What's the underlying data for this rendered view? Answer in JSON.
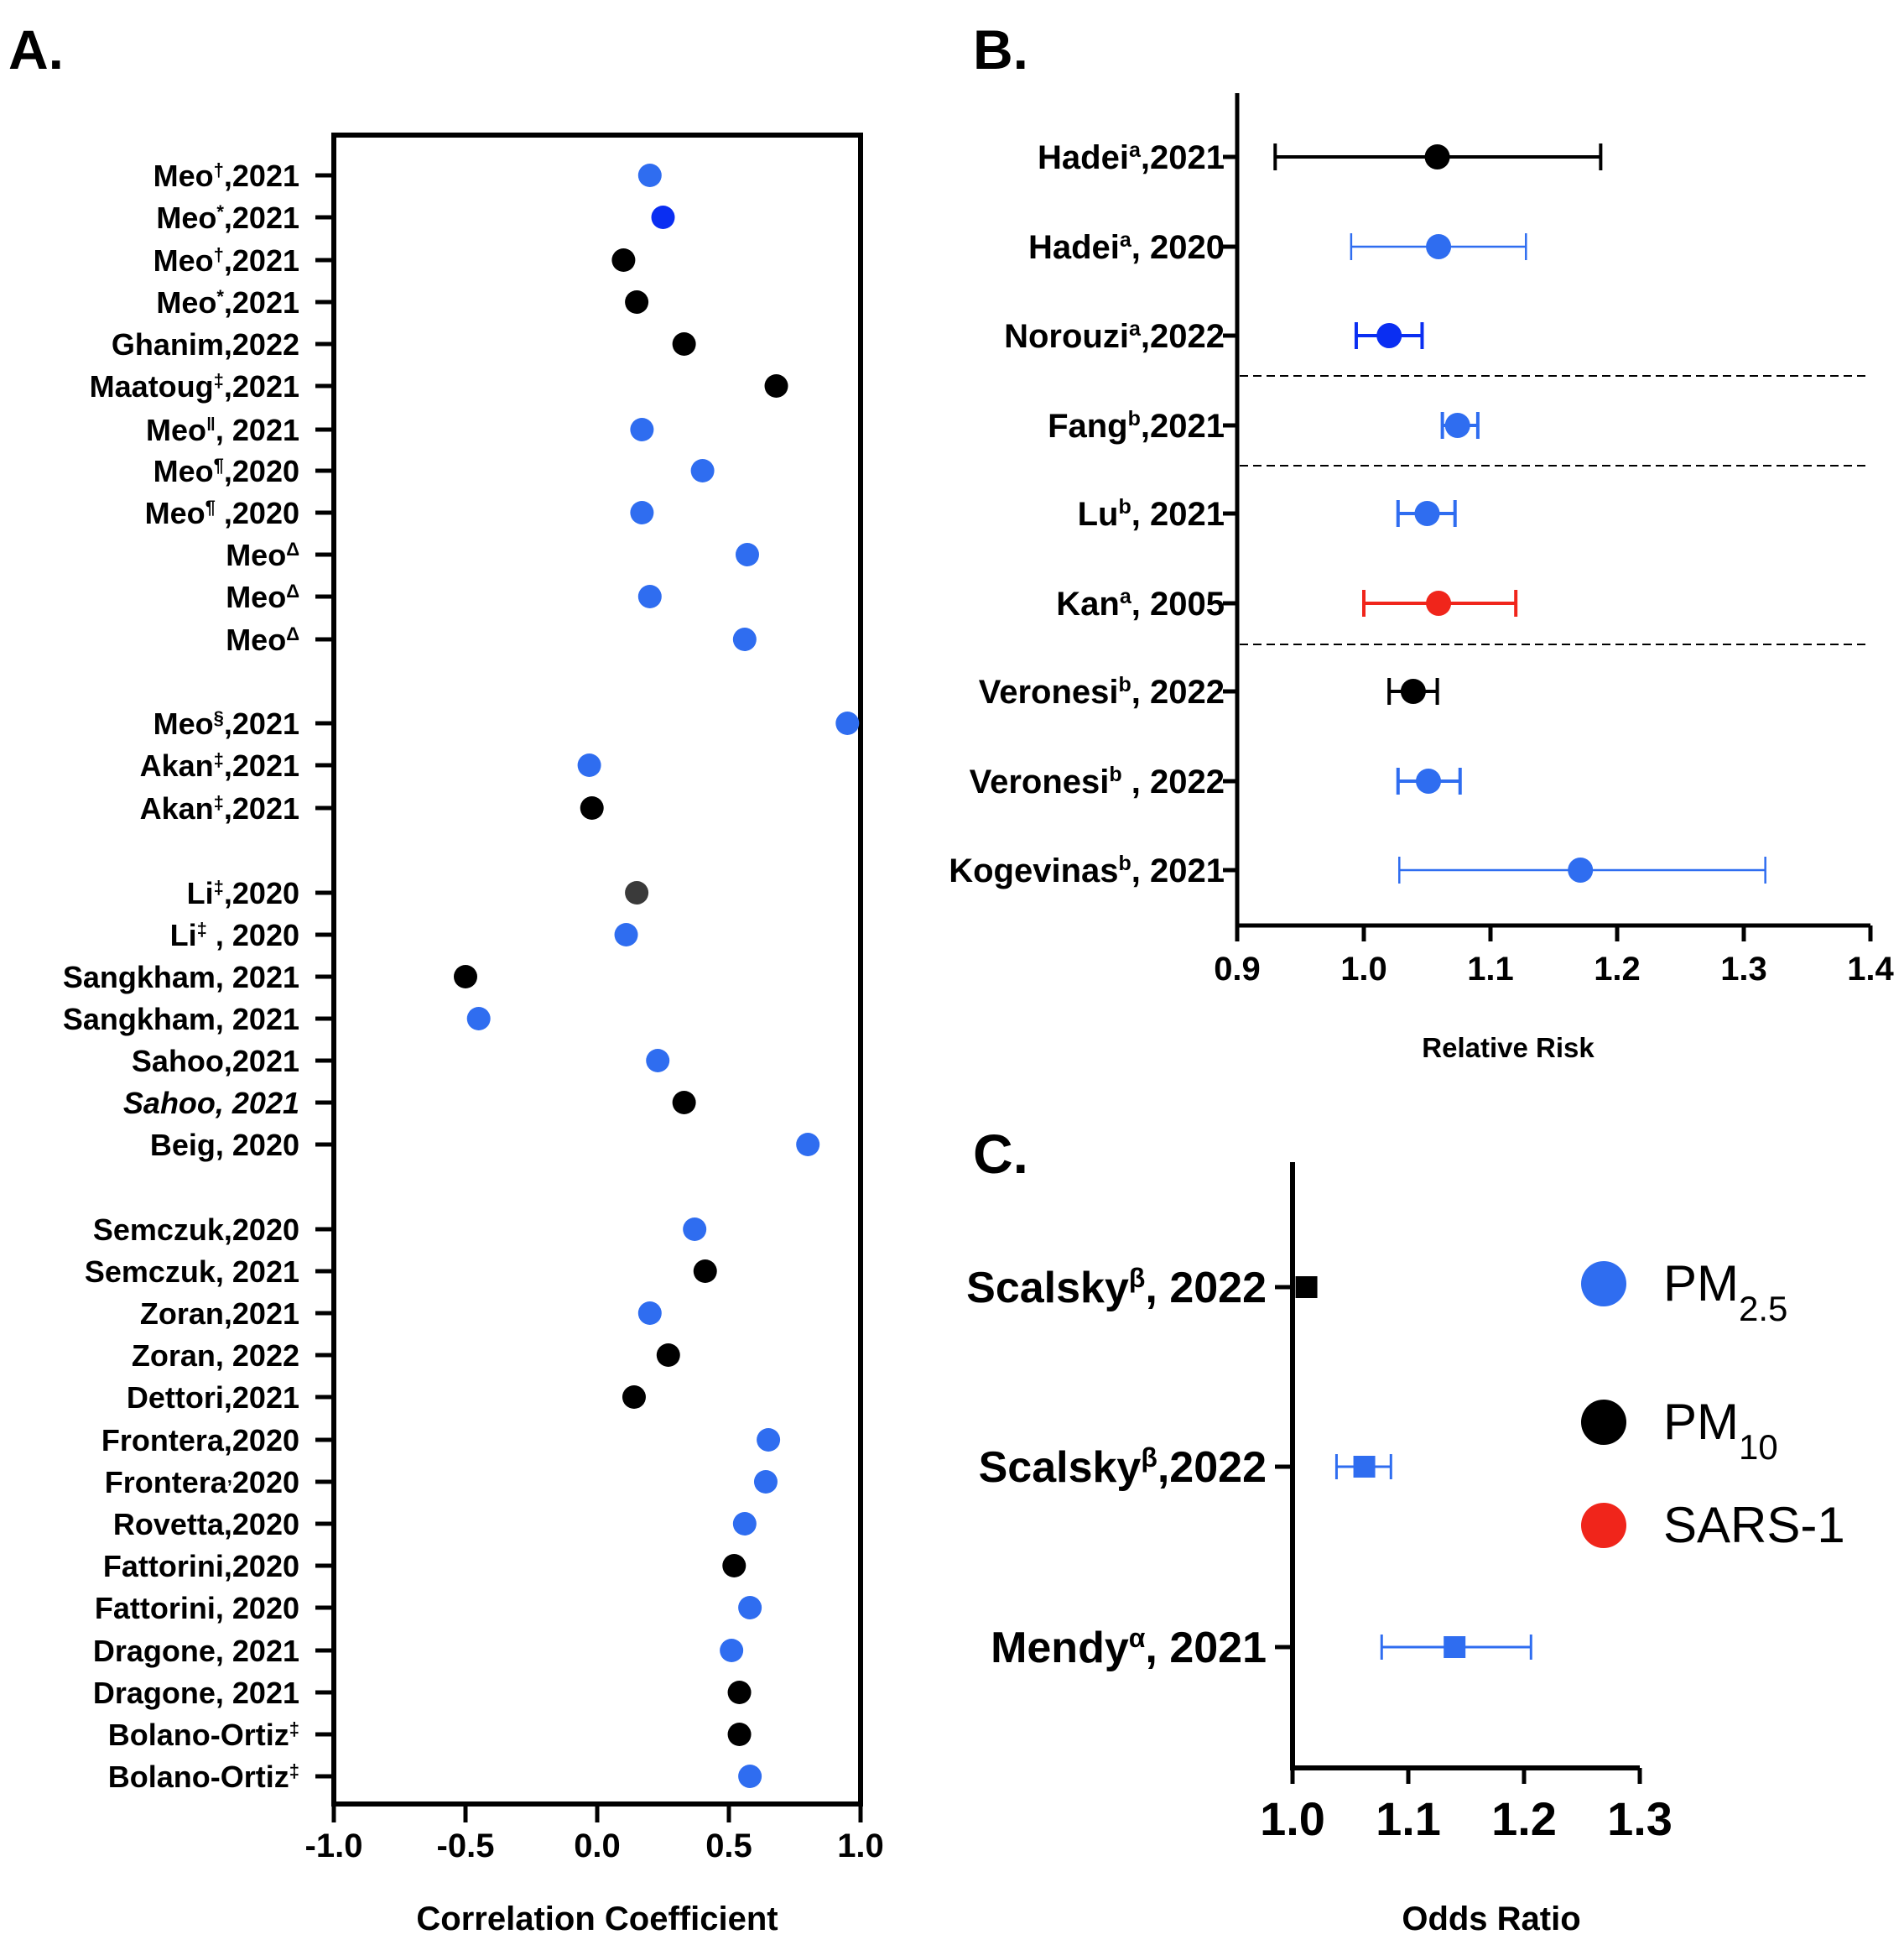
{
  "colors": {
    "pm25": "#2f6df0",
    "pm25_dark": "#0a2ef2",
    "pm10": "#000000",
    "pm10_gray": "#3a3a3a",
    "sars1": "#f0251b"
  },
  "chart_data": [
    {
      "panel": "A.",
      "type": "scatter",
      "xlabel": "Correlation Coefficient",
      "xlim": [
        -1.0,
        1.0
      ],
      "xticks": [
        "-1.0",
        "-0.5",
        "0.0",
        "0.5",
        "1.0"
      ],
      "points": [
        {
          "label": "Meo",
          "sup": "†",
          "tail": ",2021",
          "value": 0.2,
          "color": "pm25"
        },
        {
          "label": "Meo",
          "sup": "*",
          "tail": ",2021",
          "value": 0.25,
          "color": "pm25_dark"
        },
        {
          "label": "Meo",
          "sup": "†",
          "tail": ",2021",
          "value": 0.1,
          "color": "pm10"
        },
        {
          "label": "Meo",
          "sup": "*",
          "tail": ",2021",
          "value": 0.15,
          "color": "pm10"
        },
        {
          "label": "Ghanim,2022",
          "sup": "",
          "tail": "",
          "value": 0.33,
          "color": "pm10"
        },
        {
          "label": "Maatoug",
          "sup": "‡",
          "tail": ",2021",
          "value": 0.68,
          "color": "pm10"
        },
        {
          "label": "Meo",
          "sup": "ǁ",
          "tail": ", 2021",
          "value": 0.17,
          "color": "pm25"
        },
        {
          "label": "Meo",
          "sup": "¶",
          "tail": ",2020",
          "value": 0.4,
          "color": "pm25"
        },
        {
          "label": "Meo",
          "sup": "¶",
          "tail": " ,2020",
          "value": 0.17,
          "color": "pm25"
        },
        {
          "label": "Meo",
          "sup": "Δ",
          "tail": "",
          "value": 0.57,
          "color": "pm25"
        },
        {
          "label": "Meo",
          "sup": "Δ",
          "tail": "",
          "value": 0.2,
          "color": "pm25"
        },
        {
          "label": "Meo",
          "sup": "Δ",
          "tail": "",
          "value": 0.56,
          "color": "pm25"
        },
        {
          "label": "Meo",
          "sup": "§",
          "tail": ",2021",
          "value": 0.95,
          "color": "pm25"
        },
        {
          "label": "Akan",
          "sup": "‡",
          "tail": ",2021",
          "value": -0.03,
          "color": "pm25"
        },
        {
          "label": "Akan",
          "sup": "‡",
          "tail": ",2021",
          "value": -0.02,
          "color": "pm10"
        },
        {
          "label": "Li",
          "sup": "‡",
          "tail": ",2020",
          "value": 0.15,
          "color": "pm10_gray"
        },
        {
          "label": "Li",
          "sup": "‡",
          "tail": " , 2020",
          "value": 0.11,
          "color": "pm25"
        },
        {
          "label": "Sangkham, 2021",
          "sup": "",
          "tail": "",
          "value": -0.5,
          "color": "pm10"
        },
        {
          "label": "Sangkham, 2021",
          "sup": "",
          "tail": "",
          "value": -0.45,
          "color": "pm25"
        },
        {
          "label": "Sahoo,2021",
          "sup": "",
          "tail": "",
          "value": 0.23,
          "color": "pm25"
        },
        {
          "label": "Sahoo, 2021",
          "sup": "",
          "tail": "",
          "value": 0.33,
          "color": "pm10",
          "italic": true
        },
        {
          "label": "Beig, 2020",
          "sup": "",
          "tail": "",
          "value": 0.8,
          "color": "pm25"
        },
        {
          "label": "Semczuk,2020",
          "sup": "",
          "tail": "",
          "value": 0.37,
          "color": "pm25"
        },
        {
          "label": "Semczuk, 2021",
          "sup": "",
          "tail": "",
          "value": 0.41,
          "color": "pm10"
        },
        {
          "label": "Zoran,2021",
          "sup": "",
          "tail": "",
          "value": 0.2,
          "color": "pm25"
        },
        {
          "label": "Zoran, 2022",
          "sup": "",
          "tail": "",
          "value": 0.27,
          "color": "pm10"
        },
        {
          "label": "Dettori,2021",
          "sup": "",
          "tail": "",
          "value": 0.14,
          "color": "pm10"
        },
        {
          "label": "Frontera,2020",
          "sup": "",
          "tail": "",
          "value": 0.65,
          "color": "pm25"
        },
        {
          "label": "Frontera",
          "sup": "‚",
          "tail": "2020",
          "value": 0.64,
          "color": "pm25"
        },
        {
          "label": "Rovetta,2020",
          "sup": "",
          "tail": "",
          "value": 0.56,
          "color": "pm25"
        },
        {
          "label": "Fattorini,2020",
          "sup": "",
          "tail": "",
          "value": 0.52,
          "color": "pm10"
        },
        {
          "label": "Fattorini, 2020",
          "sup": "",
          "tail": "",
          "value": 0.58,
          "color": "pm25"
        },
        {
          "label": "Dragone, 2021",
          "sup": "",
          "tail": "",
          "value": 0.51,
          "color": "pm25"
        },
        {
          "label": "Dragone, 2021",
          "sup": "",
          "tail": "",
          "value": 0.54,
          "color": "pm10"
        },
        {
          "label": "Bolano-Ortiz",
          "sup": "‡",
          "tail": "",
          "value": 0.54,
          "color": "pm10"
        },
        {
          "label": "Bolano-Ortiz",
          "sup": "‡",
          "tail": "",
          "value": 0.58,
          "color": "pm25"
        }
      ]
    },
    {
      "panel": "B.",
      "type": "forest",
      "xlabel": "Relative Risk",
      "xlim": [
        0.9,
        1.4
      ],
      "xticks": [
        "0.9",
        "1.0",
        "1.1",
        "1.2",
        "1.3",
        "1.4"
      ],
      "points": [
        {
          "label": "Hadei",
          "sup": "a",
          "tail": ",2021",
          "est": 1.058,
          "lo": 0.93,
          "hi": 1.187,
          "color": "pm10",
          "thick": true
        },
        {
          "label": "Hadei",
          "sup": "a",
          "tail": ", 2020",
          "est": 1.059,
          "lo": 0.99,
          "hi": 1.128,
          "color": "pm25",
          "thick": false
        },
        {
          "label": "Norouzi",
          "sup": "a",
          "tail": ",2022",
          "est": 1.02,
          "lo": 0.994,
          "hi": 1.046,
          "color": "pm25_dark",
          "thick": true
        },
        {
          "label": "Fang",
          "sup": "b",
          "tail": ",2021",
          "est": 1.074,
          "lo": 1.062,
          "hi": 1.09,
          "color": "pm25",
          "thick": true
        },
        {
          "label": "Lu",
          "sup": "b",
          "tail": ", 2021",
          "est": 1.05,
          "lo": 1.027,
          "hi": 1.072,
          "color": "pm25",
          "thick": true
        },
        {
          "label": "Kan",
          "sup": "a",
          "tail": ", 2005",
          "est": 1.059,
          "lo": 1.0,
          "hi": 1.12,
          "color": "sars1",
          "thick": true
        },
        {
          "label": "Veronesi",
          "sup": "b",
          "tail": ", 2022",
          "est": 1.039,
          "lo": 1.02,
          "hi": 1.058,
          "color": "pm10",
          "thick": true
        },
        {
          "label": "Veronesi",
          "sup": "b",
          "tail": " , 2022",
          "est": 1.051,
          "lo": 1.027,
          "hi": 1.076,
          "color": "pm25",
          "thick": true
        },
        {
          "label": "Kogevinas",
          "sup": "b",
          "tail": ", 2021",
          "est": 1.171,
          "lo": 1.028,
          "hi": 1.317,
          "color": "pm25",
          "thick": false
        }
      ]
    },
    {
      "panel": "C.",
      "type": "forest",
      "xlabel": "Odds Ratio",
      "xlim": [
        1.0,
        1.3
      ],
      "xticks": [
        "1.0",
        "1.1",
        "1.2",
        "1.3"
      ],
      "points": [
        {
          "label": "Scalsky",
          "sup": "β",
          "tail": ", 2022",
          "est": 1.012,
          "lo": 1.008,
          "hi": 1.018,
          "color": "pm10"
        },
        {
          "label": "Scalsky",
          "sup": "β",
          "tail": ",2022",
          "est": 1.062,
          "lo": 1.038,
          "hi": 1.085,
          "color": "pm25"
        },
        {
          "label": "Mendy",
          "sup": "α",
          "tail": ", 2021",
          "est": 1.14,
          "lo": 1.077,
          "hi": 1.206,
          "color": "pm25"
        }
      ]
    }
  ],
  "legend": [
    {
      "main": "PM",
      "sub": "2.5",
      "color": "pm25"
    },
    {
      "main": "PM",
      "sub": "10",
      "color": "pm10"
    },
    {
      "main": "SARS-1",
      "sub": "",
      "color": "sars1"
    }
  ]
}
